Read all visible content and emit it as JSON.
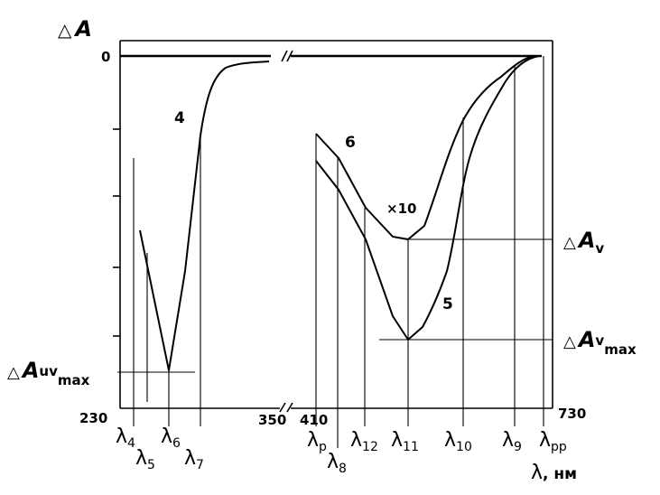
{
  "axis": {
    "y_symbol": "△",
    "y_letter": "A",
    "zero": "0",
    "x_ticks": [
      "230",
      "350",
      "410",
      "730"
    ],
    "x_symbol": "λ",
    "x_unit": ", нм"
  },
  "curves": [
    {
      "label": "4"
    },
    {
      "label": "6"
    },
    {
      "label": "5"
    }
  ],
  "scale_note": "×10",
  "annotations": [
    {
      "symbol": "△",
      "letter": "A",
      "sub": "v"
    },
    {
      "symbol": "△",
      "letter": "A",
      "sub": "v",
      "sub2": "max"
    },
    {
      "symbol": "△",
      "letter": "A",
      "sub": "uv",
      "sub2": "max"
    }
  ],
  "wavelengths": [
    {
      "symbol": "λ",
      "sub": "4"
    },
    {
      "symbol": "λ",
      "sub": "5"
    },
    {
      "symbol": "λ",
      "sub": "6"
    },
    {
      "symbol": "λ",
      "sub": "7"
    },
    {
      "symbol": "λ",
      "sub": "р"
    },
    {
      "symbol": "λ",
      "sub": "8"
    },
    {
      "symbol": "λ",
      "sub": "12"
    },
    {
      "symbol": "λ",
      "sub": "11"
    },
    {
      "symbol": "λ",
      "sub": "10"
    },
    {
      "symbol": "λ",
      "sub": "9"
    },
    {
      "symbol": "λ",
      "sub": "рр"
    }
  ]
}
